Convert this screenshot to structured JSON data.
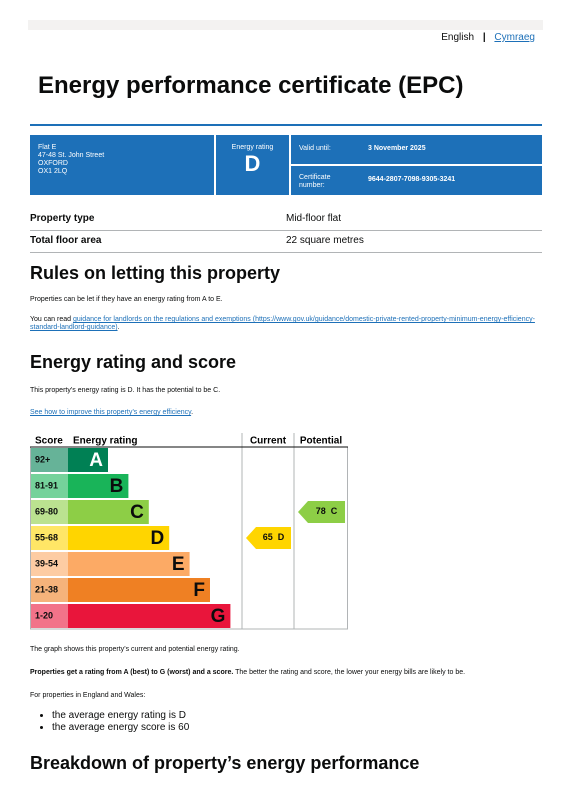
{
  "header": {
    "languages": [
      "English",
      "Cymraeg"
    ]
  },
  "title": "Energy performance certificate (EPC)",
  "summary": {
    "address": [
      "Flat E",
      "47-48 St. John Street",
      "OXFORD",
      "OX1 2LQ"
    ],
    "energy_rating_label": "Energy rating",
    "energy_rating": "D",
    "valid_until_label": "Valid until:",
    "valid_until": "3 November 2025",
    "certificate_number_label": "Certificate number:",
    "certificate_number": "9644-2807-7098-9305-3241"
  },
  "property": {
    "rows": [
      [
        "Property type",
        "Mid-floor flat"
      ],
      [
        "Total floor area",
        "22 square metres"
      ]
    ]
  },
  "rules": {
    "heading": "Rules on letting this property",
    "paragraph1": "Properties can be let if they have an energy rating from A to E.",
    "paragraph2_prefix": "You can read ",
    "paragraph2_link": "guidance for landlords on the regulations and exemptions (https://www.gov.uk/guidance/domestic-private-rented-property-minimum-energy-efficiency-standard-landlord-guidance)",
    "paragraph2_suffix": "."
  },
  "rating": {
    "heading": "Energy rating and score",
    "paragraph": "This property’s energy rating is D. It has the potential to be C.",
    "link": "See how to improve this property’s energy efficiency",
    "link_suffix": ".",
    "graph": {
      "columns": [
        "Score",
        "Energy rating",
        "Current",
        "Potential"
      ],
      "bands": [
        {
          "score": "92+",
          "letter": "A"
        },
        {
          "score": "81-91",
          "letter": "B"
        },
        {
          "score": "69-80",
          "letter": "C"
        },
        {
          "score": "55-68",
          "letter": "D"
        },
        {
          "score": "39-54",
          "letter": "E"
        },
        {
          "score": "21-38",
          "letter": "F"
        },
        {
          "score": "1-20",
          "letter": "G"
        }
      ],
      "current": {
        "score": 65,
        "letter": "D"
      },
      "potential": {
        "score": 78,
        "letter": "C"
      }
    },
    "graph_caption": "The graph shows this property’s current and potential energy rating.",
    "explanation_bold": "Properties get a rating from A (best) to G (worst) and a score.",
    "explanation": " The better the rating and score, the lower your energy bills are likely to be.",
    "averages_intro": "For properties in England and Wales:",
    "averages": [
      "the average energy rating is D",
      "the average energy score is 60"
    ]
  },
  "breakdown": {
    "heading": "Breakdown of property’s energy performance"
  }
}
